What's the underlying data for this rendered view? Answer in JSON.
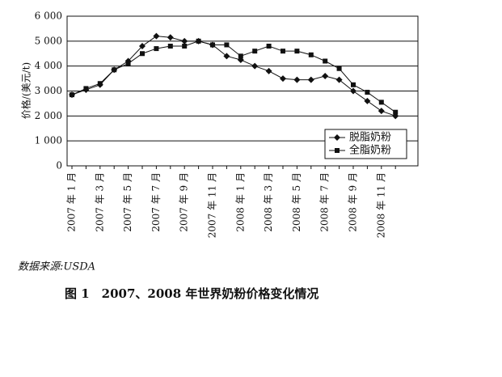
{
  "chart_data": {
    "type": "line",
    "y_label": "价格/(美元/t)",
    "categories": [
      "2007 年 1 月",
      null,
      "2007 年 3 月",
      null,
      "2007 年 5 月",
      null,
      "2007 年 7 月",
      null,
      "2007 年 9 月",
      null,
      "2007 年 11 月",
      null,
      "2008 年 1 月",
      null,
      "2008 年 3 月",
      null,
      "2008 年 5 月",
      null,
      "2008 年 7 月",
      null,
      "2008 年 9 月",
      null,
      "2008 年 11 月",
      null
    ],
    "series": [
      {
        "name": "脱脂奶粉",
        "color": "#111111",
        "marker": "diamond",
        "values": [
          2850,
          3050,
          3250,
          3850,
          4200,
          4800,
          5200,
          5150,
          5000,
          5000,
          4850,
          4400,
          4250,
          4000,
          3800,
          3500,
          3450,
          3450,
          3600,
          3450,
          3000,
          2600,
          2200,
          2000
        ]
      },
      {
        "name": "全脂奶粉",
        "color": "#111111",
        "marker": "square",
        "values": [
          2850,
          3100,
          3300,
          3850,
          4100,
          4500,
          4700,
          4800,
          4800,
          5000,
          4850,
          4850,
          4400,
          4600,
          4800,
          4600,
          4600,
          4450,
          4200,
          3900,
          3250,
          2950,
          2550,
          2150
        ]
      }
    ],
    "ylim": [
      0,
      6000
    ],
    "yticks": [
      0,
      {
        "value": 1000,
        "label": "1 000"
      },
      {
        "value": 2000,
        "label": "2 000"
      },
      {
        "value": 3000,
        "label": "3 000"
      },
      {
        "value": 4000,
        "label": "4 000"
      },
      {
        "value": 5000,
        "label": "5 000"
      },
      {
        "value": 6000,
        "label": "6 000"
      }
    ],
    "grid": true,
    "legend": "right",
    "source": "数据来源:USDA",
    "caption": "图 1　2007、2008 年世界奶粉价格变化情况"
  }
}
